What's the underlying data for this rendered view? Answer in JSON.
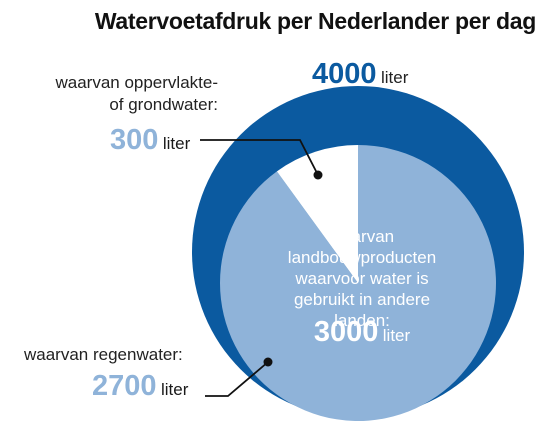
{
  "title": "Watervoetafdruk per Nederlander per dag",
  "colors": {
    "outer": "#0b5aa0",
    "rain": "#8fb3d9",
    "groundwater": "#ffffff",
    "accent_light": "#8fb3d9"
  },
  "labels": {
    "total_value": "4000",
    "total_unit": "liter",
    "groundwater_text": "waarvan oppervlakte-\nof grondwater:",
    "groundwater_value": "300",
    "groundwater_unit": "liter",
    "rain_text": "waarvan regenwater:",
    "rain_value": "2700",
    "rain_unit": "liter",
    "imported_text": "waarvan landbouwproducten waarvoor water is gebruikt in andere landen:",
    "imported_value": "3000",
    "imported_unit": "liter"
  },
  "chart_data": {
    "type": "pie",
    "title": "Watervoetafdruk per Nederlander per dag",
    "unit": "liter",
    "total": 4000,
    "slices": [
      {
        "name": "waarvan oppervlakte- of grondwater",
        "value": 300
      },
      {
        "name": "waarvan regenwater",
        "value": 2700
      }
    ],
    "subset": {
      "name": "waarvan landbouwproducten waarvoor water is gebruikt in andere landen",
      "value": 3000
    }
  }
}
